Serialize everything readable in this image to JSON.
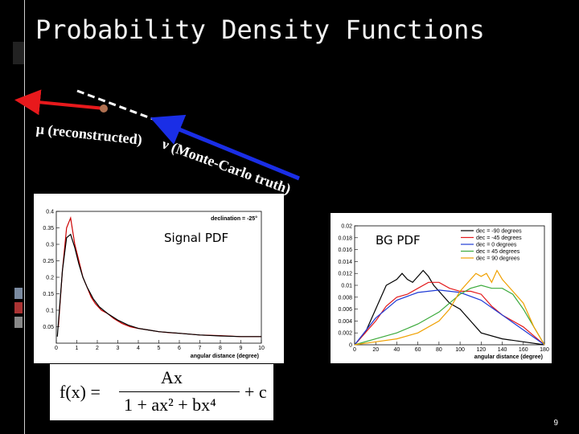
{
  "slide": {
    "title": "Probability Density Functions",
    "page_number": "9"
  },
  "diagram": {
    "mu_label": "μ (reconstructed)",
    "nu_label": "ν (Monte-Carlo truth)",
    "mu_color": "#e8191c",
    "nu_color": "#1a2ee6"
  },
  "signal": {
    "label": "Signal PDF",
    "annotation": "declination = -25°",
    "xlabel": "angular distance (degree)"
  },
  "bg": {
    "label": "BG PDF",
    "xlabel": "angular distance (degree)"
  },
  "formula": {
    "lhs": "f(x) =",
    "numerator": "Ax",
    "denominator": "1 + ax² + bx⁴",
    "plus": "+ c"
  },
  "chart_data": [
    {
      "type": "line",
      "xlim": [
        0,
        10
      ],
      "ylim": [
        0,
        0.4
      ],
      "xticks": [
        "0",
        "1",
        "2",
        "3",
        "4",
        "5",
        "6",
        "7",
        "8",
        "9",
        "10"
      ],
      "yticks": [
        "0.05",
        "0.1",
        "0.15",
        "0.2",
        "0.25",
        "0.3",
        "0.35",
        "0.4"
      ],
      "series": [
        {
          "color": "#cc0000",
          "x": [
            0.1,
            0.3,
            0.5,
            0.7,
            0.9,
            1.1,
            1.3,
            1.5,
            1.7,
            1.9,
            2.2,
            2.5,
            2.8,
            3.2,
            3.6,
            4.0,
            4.5,
            5.0,
            5.5,
            6.0,
            7.0,
            8.0,
            9.0,
            10.0
          ],
          "y": [
            0.05,
            0.22,
            0.35,
            0.38,
            0.3,
            0.25,
            0.2,
            0.17,
            0.14,
            0.12,
            0.1,
            0.09,
            0.075,
            0.06,
            0.05,
            0.045,
            0.04,
            0.035,
            0.032,
            0.03,
            0.025,
            0.023,
            0.02,
            0.02
          ]
        },
        {
          "color": "#000000",
          "x": [
            0.05,
            0.3,
            0.5,
            0.7,
            0.9,
            1.1,
            1.3,
            1.5,
            1.8,
            2.1,
            2.5,
            3.0,
            3.5,
            4.0,
            4.5,
            5.0,
            6.0,
            7.0,
            8.0,
            9.0,
            10.0
          ],
          "y": [
            0.02,
            0.22,
            0.32,
            0.33,
            0.29,
            0.24,
            0.2,
            0.17,
            0.135,
            0.11,
            0.09,
            0.07,
            0.055,
            0.045,
            0.04,
            0.035,
            0.03,
            0.025,
            0.022,
            0.02,
            0.02
          ]
        }
      ]
    },
    {
      "type": "line",
      "xlim": [
        0,
        180
      ],
      "ylim": [
        0,
        0.02
      ],
      "xticks": [
        "0",
        "20",
        "40",
        "60",
        "80",
        "100",
        "120",
        "140",
        "160",
        "180"
      ],
      "yticks": [
        "0",
        "0.002",
        "0.004",
        "0.006",
        "0.008",
        "0.01",
        "0.012",
        "0.014",
        "0.016",
        "0.018",
        "0.02"
      ],
      "series": [
        {
          "name": "dec = -90 degrees",
          "color": "#000000",
          "x": [
            0,
            10,
            20,
            30,
            40,
            45,
            50,
            55,
            60,
            65,
            70,
            75,
            80,
            90,
            100,
            110,
            120,
            140,
            160,
            180
          ],
          "y": [
            0,
            0.002,
            0.006,
            0.01,
            0.011,
            0.012,
            0.011,
            0.0105,
            0.0115,
            0.0125,
            0.0115,
            0.01,
            0.009,
            0.007,
            0.006,
            0.004,
            0.002,
            0.001,
            0.0005,
            0
          ]
        },
        {
          "name": "dec = -45 degrees",
          "color": "#e31a1c",
          "x": [
            0,
            10,
            20,
            30,
            40,
            50,
            60,
            70,
            80,
            90,
            100,
            110,
            120,
            130,
            140,
            150,
            160,
            170,
            180
          ],
          "y": [
            0,
            0.002,
            0.004,
            0.0065,
            0.008,
            0.0085,
            0.0095,
            0.0105,
            0.0105,
            0.0095,
            0.009,
            0.009,
            0.0085,
            0.0065,
            0.005,
            0.004,
            0.003,
            0.0015,
            0
          ]
        },
        {
          "name": "dec = 0 degrees",
          "color": "#1f3bd6",
          "x": [
            0,
            20,
            40,
            60,
            80,
            100,
            120,
            140,
            160,
            180
          ],
          "y": [
            0,
            0.0045,
            0.0075,
            0.0088,
            0.0092,
            0.0088,
            0.0075,
            0.005,
            0.0025,
            0
          ]
        },
        {
          "name": "dec = 45 degrees",
          "color": "#3caa3c",
          "x": [
            0,
            20,
            40,
            60,
            80,
            90,
            100,
            110,
            120,
            130,
            140,
            150,
            160,
            170,
            180
          ],
          "y": [
            0,
            0.001,
            0.002,
            0.0035,
            0.0055,
            0.007,
            0.0085,
            0.0095,
            0.01,
            0.0095,
            0.0095,
            0.0085,
            0.006,
            0.003,
            0
          ]
        },
        {
          "name": "dec = 90 degrees",
          "color": "#f0a000",
          "x": [
            0,
            20,
            40,
            60,
            80,
            90,
            100,
            110,
            115,
            120,
            125,
            130,
            135,
            140,
            150,
            160,
            170,
            180
          ],
          "y": [
            0,
            0.0005,
            0.001,
            0.002,
            0.004,
            0.006,
            0.009,
            0.011,
            0.012,
            0.0115,
            0.012,
            0.0105,
            0.0125,
            0.011,
            0.009,
            0.007,
            0.003,
            0
          ]
        }
      ]
    }
  ]
}
